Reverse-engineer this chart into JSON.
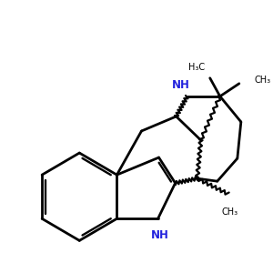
{
  "bg": "#ffffff",
  "bond_color": "#000000",
  "nh_color": "#2222dd",
  "lw": 2.0,
  "wavy_lw": 1.6,
  "wavy_amp": 0.055,
  "wavy_n": 7,
  "fs_nh": 8.5,
  "fs_me": 7.0,
  "xlim": [
    0.0,
    8.5
  ],
  "ylim": [
    0.5,
    7.5
  ]
}
